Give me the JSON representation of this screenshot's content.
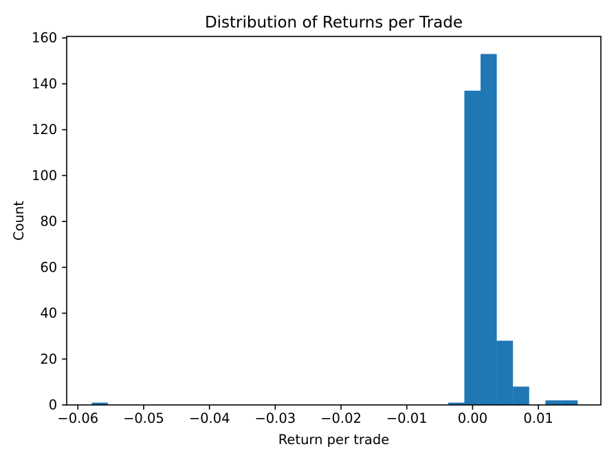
{
  "colors": {
    "bar": "#1f77b4",
    "axis": "#000000",
    "text": "#000000",
    "background": "#ffffff"
  },
  "chart_data": {
    "type": "bar",
    "subtype": "histogram",
    "title": "Distribution of Returns per Trade",
    "xlabel": "Return per trade",
    "ylabel": "Count",
    "bin_start": -0.0579,
    "bin_width": 0.002463,
    "counts": [
      1,
      0,
      0,
      0,
      0,
      0,
      0,
      0,
      0,
      0,
      0,
      0,
      0,
      0,
      0,
      0,
      0,
      0,
      0,
      0,
      0,
      0,
      1,
      137,
      153,
      28,
      8,
      0,
      2,
      2
    ],
    "xlim": [
      -0.0617,
      0.0195
    ],
    "ylim": [
      0,
      160.65
    ],
    "xticks": [
      -0.06,
      -0.05,
      -0.04,
      -0.03,
      -0.02,
      -0.01,
      0.0,
      0.01
    ],
    "xtick_labels": [
      "−0.06",
      "−0.05",
      "−0.04",
      "−0.03",
      "−0.02",
      "−0.01",
      "0.00",
      "0.01"
    ],
    "yticks": [
      0,
      20,
      40,
      60,
      80,
      100,
      120,
      140,
      160
    ],
    "ytick_labels": [
      "0",
      "20",
      "40",
      "60",
      "80",
      "100",
      "120",
      "140",
      "160"
    ],
    "grid": false,
    "legend_position": "none"
  }
}
